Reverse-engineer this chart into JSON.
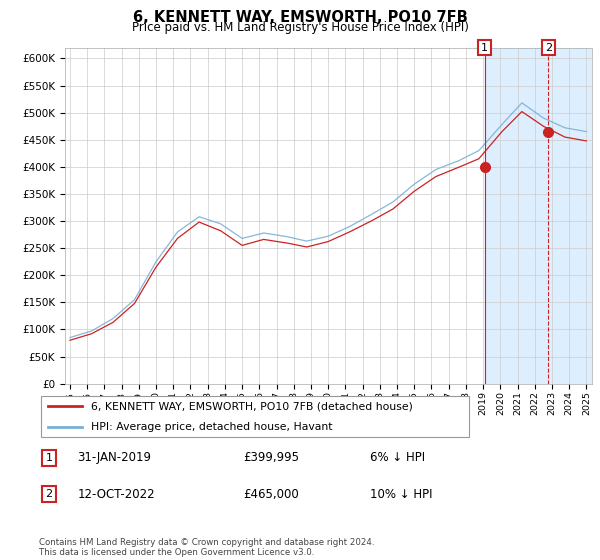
{
  "title": "6, KENNETT WAY, EMSWORTH, PO10 7FB",
  "subtitle": "Price paid vs. HM Land Registry's House Price Index (HPI)",
  "hpi_label": "HPI: Average price, detached house, Havant",
  "price_label": "6, KENNETT WAY, EMSWORTH, PO10 7FB (detached house)",
  "footnote": "Contains HM Land Registry data © Crown copyright and database right 2024.\nThis data is licensed under the Open Government Licence v3.0.",
  "hpi_color": "#7bafd4",
  "price_color": "#cc2222",
  "ylim": [
    0,
    620000
  ],
  "yticks": [
    0,
    50000,
    100000,
    150000,
    200000,
    250000,
    300000,
    350000,
    400000,
    450000,
    500000,
    550000,
    600000
  ],
  "xlim_start": 1994.7,
  "xlim_end": 2025.3,
  "sale1_year": 2019.08,
  "sale1_price": 399995,
  "sale2_year": 2022.79,
  "sale2_price": 465000,
  "shade_start": 2019.08,
  "shade_end": 2025.3,
  "shade_color": "#ddeeff",
  "note1_date": "31-JAN-2019",
  "note1_price": "£399,995",
  "note1_pct": "6% ↓ HPI",
  "note2_date": "12-OCT-2022",
  "note2_price": "£465,000",
  "note2_pct": "10% ↓ HPI"
}
